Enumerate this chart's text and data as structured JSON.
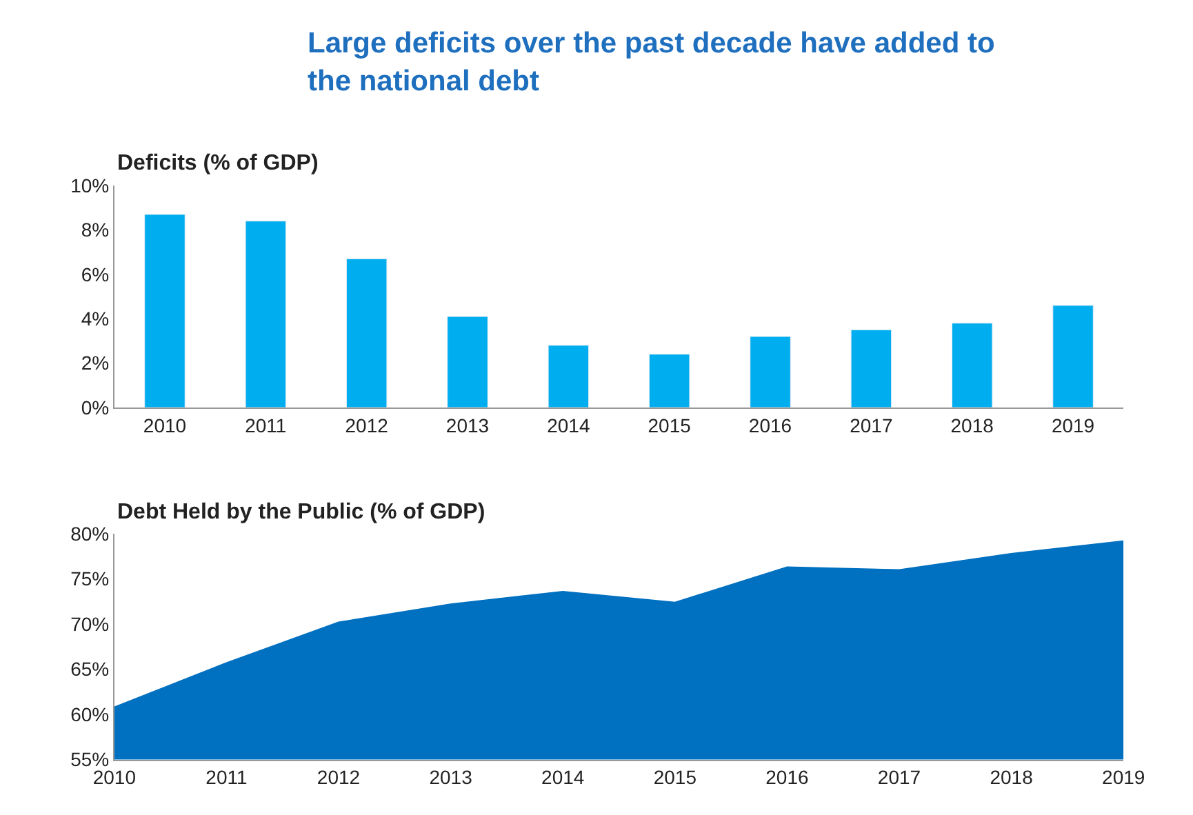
{
  "chart_data": [
    {
      "type": "bar",
      "title": "Large deficits over the past decade have added to the national debt",
      "subtitle": "Deficits (% of GDP)",
      "categories": [
        "2010",
        "2011",
        "2012",
        "2013",
        "2014",
        "2015",
        "2016",
        "2017",
        "2018",
        "2019"
      ],
      "series": [
        {
          "color": "#00aeef",
          "values": [
            8.7,
            8.4,
            6.7,
            4.1,
            2.8,
            2.4,
            3.2,
            3.5,
            3.8,
            4.6
          ]
        }
      ],
      "ylim": [
        0,
        10
      ],
      "yticks": [
        {
          "value": 0,
          "label": "0%"
        },
        {
          "value": 2,
          "label": "2%"
        },
        {
          "value": 4,
          "label": "4%"
        },
        {
          "value": 6,
          "label": "6%"
        },
        {
          "value": 8,
          "label": "8%"
        },
        {
          "value": 10,
          "label": "10%"
        }
      ],
      "legend": false
    },
    {
      "type": "area",
      "title": "Debt Held by the Public (% of GDP)",
      "x": [
        2010,
        2011,
        2012,
        2013,
        2014,
        2015,
        2016,
        2017,
        2018,
        2019
      ],
      "series": [
        {
          "color": "#0070c0",
          "values": [
            60.8,
            65.7,
            70.2,
            72.2,
            73.6,
            72.4,
            76.3,
            76.0,
            77.8,
            79.2
          ]
        }
      ],
      "xlim": [
        2010,
        2019
      ],
      "xticks": [
        2010,
        2011,
        2012,
        2013,
        2014,
        2015,
        2016,
        2017,
        2018,
        2019
      ],
      "ylim": [
        55,
        80
      ],
      "yticks": [
        {
          "value": 55,
          "label": "55%"
        },
        {
          "value": 60,
          "label": "60%"
        },
        {
          "value": 65,
          "label": "65%"
        },
        {
          "value": 70,
          "label": "70%"
        },
        {
          "value": 75,
          "label": "75%"
        },
        {
          "value": 80,
          "label": "80%"
        }
      ],
      "legend": false
    }
  ]
}
